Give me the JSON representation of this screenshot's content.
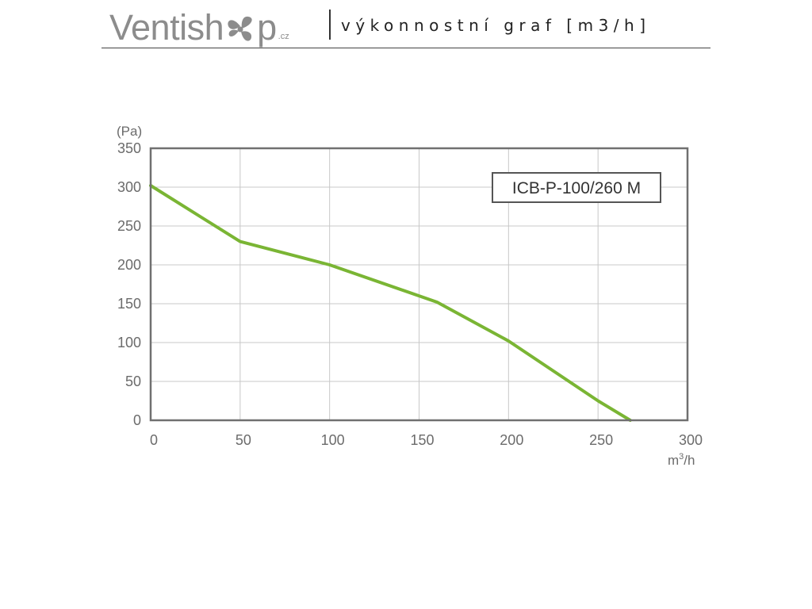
{
  "header": {
    "logo_part1": "Ventish",
    "logo_fan": "fan-icon",
    "logo_part2": "p",
    "logo_suffix": ".cz",
    "subtitle": "výkonnostní graf [m3/h]"
  },
  "chart_data": {
    "type": "line",
    "ylabel": "(Pa)",
    "xlabel_base": "m",
    "xlabel_sup": "3",
    "xlabel_rest": "/h",
    "xlim": [
      0,
      300
    ],
    "ylim": [
      0,
      350
    ],
    "xticks": [
      0,
      50,
      100,
      150,
      200,
      250,
      300
    ],
    "yticks": [
      0,
      50,
      100,
      150,
      200,
      250,
      300,
      350
    ],
    "grid": true,
    "series": [
      {
        "name": "ICB-P-100/260 M",
        "color": "#7ab534",
        "x": [
          0,
          50,
          100,
          160,
          200,
          250,
          268
        ],
        "y": [
          302,
          230,
          200,
          152,
          102,
          25,
          0
        ]
      }
    ]
  }
}
